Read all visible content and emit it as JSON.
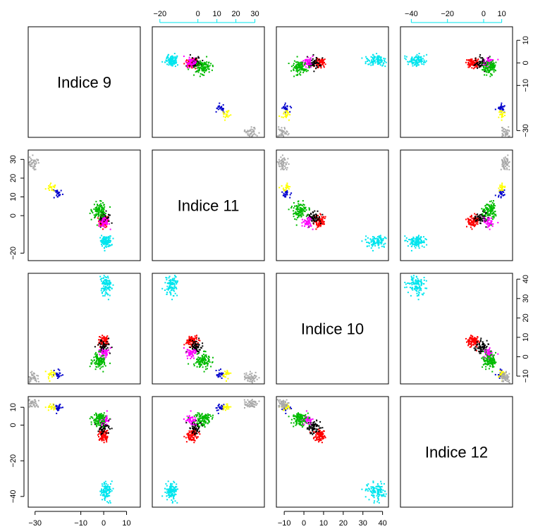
{
  "chart_data": {
    "type": "scatter",
    "subtype": "pairs-matrix",
    "variables": [
      "Indice 9",
      "Indice 11",
      "Indice 10",
      "Indice 12"
    ],
    "axis_ranges": {
      "Indice 9": [
        -33,
        16
      ],
      "Indice 11": [
        -24,
        35
      ],
      "Indice 10": [
        -14,
        43
      ],
      "Indice 12": [
        -46,
        16
      ]
    },
    "ticks": {
      "Indice 9": [
        "-30",
        "-10",
        "0",
        "10"
      ],
      "Indice 11": [
        "-20",
        "0",
        "10",
        "20",
        "30"
      ],
      "Indice 10": [
        "-10",
        "0",
        "10",
        "20",
        "30",
        "40"
      ],
      "Indice 12": [
        "-40",
        "-20",
        "0",
        "10"
      ]
    },
    "tick_values": {
      "Indice 9": [
        -30,
        -10,
        0,
        10
      ],
      "Indice 11": [
        -20,
        0,
        10,
        20,
        30
      ],
      "Indice 10": [
        -10,
        0,
        10,
        20,
        30,
        40
      ],
      "Indice 12": [
        -40,
        -20,
        0,
        10
      ]
    },
    "grid": false,
    "legend": "none",
    "clusters": [
      {
        "color": "#ff0000",
        "n": 90,
        "mean": [
          0,
          -3,
          8,
          -6
        ],
        "sd": [
          1.1,
          1.6,
          1.4,
          1.8
        ]
      },
      {
        "color": "#000000",
        "n": 60,
        "mean": [
          0,
          -1,
          5,
          -1
        ],
        "sd": [
          1.3,
          1.5,
          1.6,
          1.6
        ]
      },
      {
        "color": "#ff00ff",
        "n": 45,
        "mean": [
          0,
          -4,
          2,
          3
        ],
        "sd": [
          1.3,
          1.3,
          1.4,
          1.5
        ]
      },
      {
        "color": "#00bb00",
        "n": 110,
        "mean": [
          -2,
          3,
          -2,
          3
        ],
        "sd": [
          1.5,
          2.0,
          2.0,
          1.8
        ]
      },
      {
        "color": "#0000cc",
        "n": 25,
        "mean": [
          -20,
          12,
          -9,
          10
        ],
        "sd": [
          1.2,
          1.5,
          1.2,
          1.2
        ]
      },
      {
        "color": "#ffff00",
        "n": 22,
        "mean": [
          -23,
          15,
          -9,
          10
        ],
        "sd": [
          1.1,
          1.2,
          1.2,
          1.0
        ]
      },
      {
        "color": "#aaaaaa",
        "n": 55,
        "mean": [
          -32,
          28,
          -11,
          12
        ],
        "sd": [
          1.5,
          1.8,
          1.4,
          1.2
        ]
      },
      {
        "color": "#00e5ee",
        "n": 110,
        "mean": [
          1,
          -14,
          37,
          -37
        ],
        "sd": [
          1.2,
          1.5,
          2.5,
          2.5
        ]
      }
    ]
  }
}
